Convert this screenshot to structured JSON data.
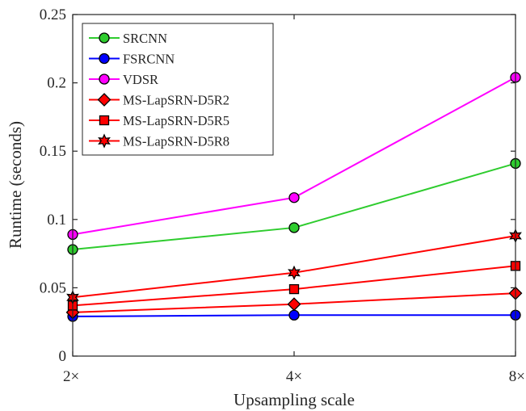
{
  "chart_data": {
    "type": "line",
    "title": "",
    "xlabel": "Upsampling scale",
    "ylabel": "Runtime (seconds)",
    "categories": [
      "2×",
      "4×",
      "8×"
    ],
    "ylim": [
      0,
      0.25
    ],
    "yticks": [
      0,
      0.05,
      0.1,
      0.15,
      0.2,
      0.25
    ],
    "ytick_labels": [
      "0",
      "0.05",
      "0.1",
      "0.15",
      "0.2",
      "0.25"
    ],
    "grid": false,
    "legend_position": "top-left",
    "series": [
      {
        "name": "SRCNN",
        "values": [
          0.078,
          0.094,
          0.141
        ],
        "color": "#2ecc2e",
        "marker": "circle"
      },
      {
        "name": "FSRCNN",
        "values": [
          0.029,
          0.03,
          0.03
        ],
        "color": "#0000ff",
        "marker": "circle"
      },
      {
        "name": "VDSR",
        "values": [
          0.089,
          0.116,
          0.204
        ],
        "color": "#ff00ff",
        "marker": "circle"
      },
      {
        "name": "MS-LapSRN-D5R2",
        "values": [
          0.032,
          0.038,
          0.046
        ],
        "color": "#ff0000",
        "marker": "diamond"
      },
      {
        "name": "MS-LapSRN-D5R5",
        "values": [
          0.037,
          0.049,
          0.066
        ],
        "color": "#ff0000",
        "marker": "square"
      },
      {
        "name": "MS-LapSRN-D5R8",
        "values": [
          0.043,
          0.061,
          0.088
        ],
        "color": "#ff0000",
        "marker": "hexagram"
      }
    ]
  }
}
